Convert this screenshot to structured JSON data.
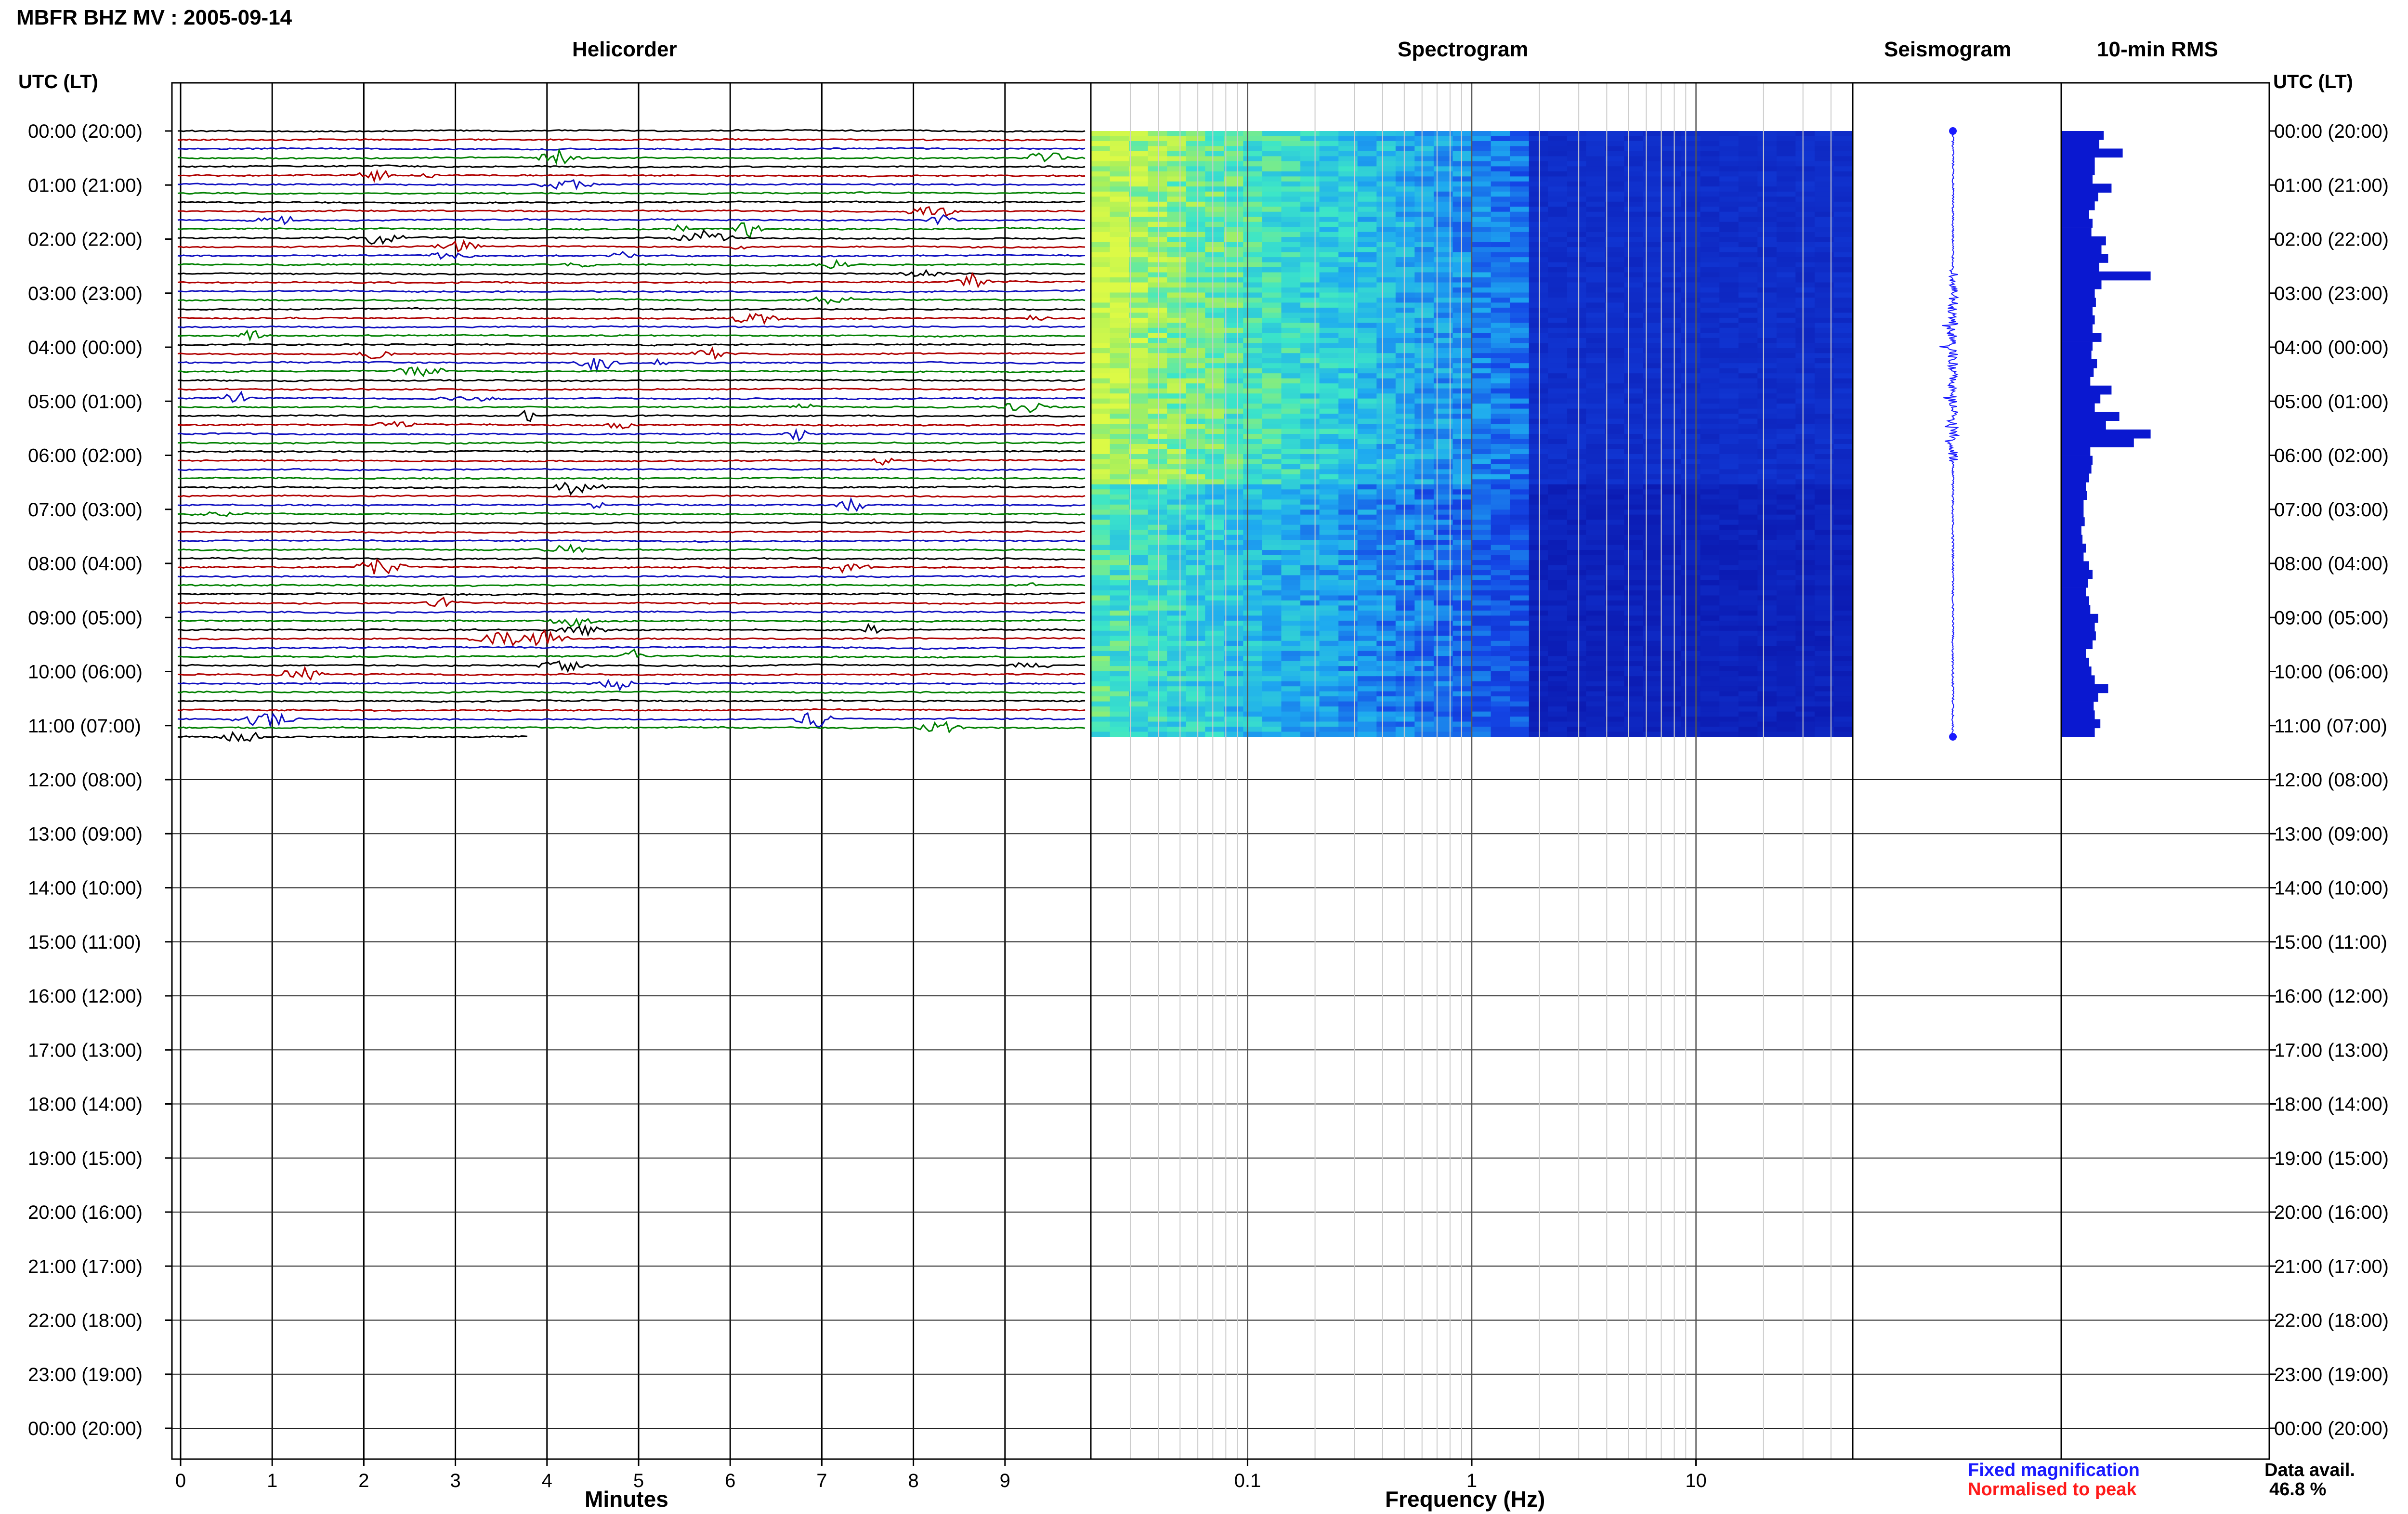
{
  "page": {
    "title": "MBFR BHZ MV : 2005-09-14",
    "utc_label_left": "UTC (LT)",
    "utc_label_right": "UTC (LT)"
  },
  "panels": {
    "helicorder": "Helicorder",
    "spectrogram": "Spectrogram",
    "seismogram": "Seismogram",
    "rms": "10-min RMS"
  },
  "axes": {
    "minutes_label": "Minutes",
    "frequency_label": "Frequency (Hz)",
    "minute_ticks": [
      "0",
      "1",
      "2",
      "3",
      "4",
      "5",
      "6",
      "7",
      "8",
      "9"
    ],
    "frequency_ticks": [
      "0.1",
      "1",
      "10"
    ]
  },
  "time_labels": [
    "00:00 (20:00)",
    "01:00 (21:00)",
    "02:00 (22:00)",
    "03:00 (23:00)",
    "04:00 (00:00)",
    "05:00 (01:00)",
    "06:00 (02:00)",
    "07:00 (03:00)",
    "08:00 (04:00)",
    "09:00 (05:00)",
    "10:00 (06:00)",
    "11:00 (07:00)",
    "12:00 (08:00)",
    "13:00 (09:00)",
    "14:00 (10:00)",
    "15:00 (11:00)",
    "16:00 (12:00)",
    "17:00 (13:00)",
    "18:00 (14:00)",
    "19:00 (15:00)",
    "20:00 (16:00)",
    "21:00 (17:00)",
    "22:00 (18:00)",
    "23:00 (19:00)",
    "00:00 (20:00)"
  ],
  "legend": {
    "fixed": "Fixed magnification",
    "normalised": "Normalised to peak",
    "fixed_color": "#1a1aff",
    "normalised_color": "#ff1a1a"
  },
  "data_availability": {
    "label": "Data avail.",
    "value": "46.8 %"
  },
  "chart_data": {
    "type": "heatmap",
    "minutes_range": [
      0,
      10
    ],
    "frequency_range_hz": [
      0.02,
      50
    ],
    "frequency_scale": "log",
    "trace_colors": [
      "#000000",
      "#b00000",
      "#1010c0",
      "#008000"
    ],
    "rms_10min": [
      0.38,
      0.34,
      0.55,
      0.3,
      0.3,
      0.28,
      0.45,
      0.33,
      0.3,
      0.25,
      0.28,
      0.27,
      0.4,
      0.36,
      0.42,
      0.34,
      0.8,
      0.36,
      0.3,
      0.31,
      0.28,
      0.3,
      0.28,
      0.36,
      0.28,
      0.27,
      0.32,
      0.29,
      0.26,
      0.45,
      0.35,
      0.3,
      0.52,
      0.4,
      0.8,
      0.65,
      0.26,
      0.28,
      0.27,
      0.25,
      0.22,
      0.23,
      0.2,
      0.2,
      0.21,
      0.18,
      0.19,
      0.22,
      0.2,
      0.25,
      0.28,
      0.24,
      0.22,
      0.25,
      0.26,
      0.33,
      0.3,
      0.31,
      0.28,
      0.22,
      0.25,
      0.27,
      0.3,
      0.42,
      0.33,
      0.29,
      0.3,
      0.35,
      0.3
    ]
  }
}
